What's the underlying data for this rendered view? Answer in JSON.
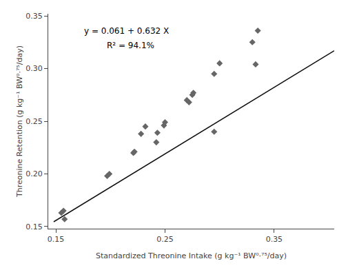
{
  "chart_data": {
    "type": "scatter",
    "xlabel": "Standardized Threonine Intake (g kg⁻¹ BW⁰·⁷⁵/day)",
    "ylabel": "Threonine Retention (g kg⁻¹ BW⁰·⁷⁵/day)",
    "series": [
      {
        "type": "scatter",
        "x": [
          0.155,
          0.157,
          0.158,
          0.221,
          0.222,
          0.228,
          0.232,
          0.197,
          0.199,
          0.27,
          0.272,
          0.275,
          0.276,
          0.3,
          0.33,
          0.335,
          0.333,
          0.295,
          0.249,
          0.243,
          0.242,
          0.25,
          0.295
        ],
        "values": [
          0.163,
          0.165,
          0.157,
          0.22,
          0.221,
          0.238,
          0.245,
          0.198,
          0.2,
          0.27,
          0.268,
          0.275,
          0.277,
          0.305,
          0.325,
          0.336,
          0.304,
          0.295,
          0.246,
          0.239,
          0.23,
          0.249,
          0.24
        ],
        "color": "#666666",
        "marker": "diamond"
      },
      {
        "type": "line",
        "x": [
          0.148,
          0.405
        ],
        "values": [
          0.154536,
          0.31696
        ],
        "color": "#111111",
        "line_style": "solid"
      }
    ],
    "annotations": [
      "y = 0.061 + 0.632 X",
      "R² = 94.1%"
    ],
    "xlim": [
      0.143,
      0.405
    ],
    "ylim": [
      0.148,
      0.352
    ],
    "xticks": [
      0.15,
      0.25,
      0.35
    ],
    "yticks": [
      0.15,
      {
        "value": 0.2,
        "label": "0.20"
      },
      0.25,
      {
        "value": 0.3,
        "label": "0.30"
      },
      0.35
    ],
    "grid": false
  }
}
